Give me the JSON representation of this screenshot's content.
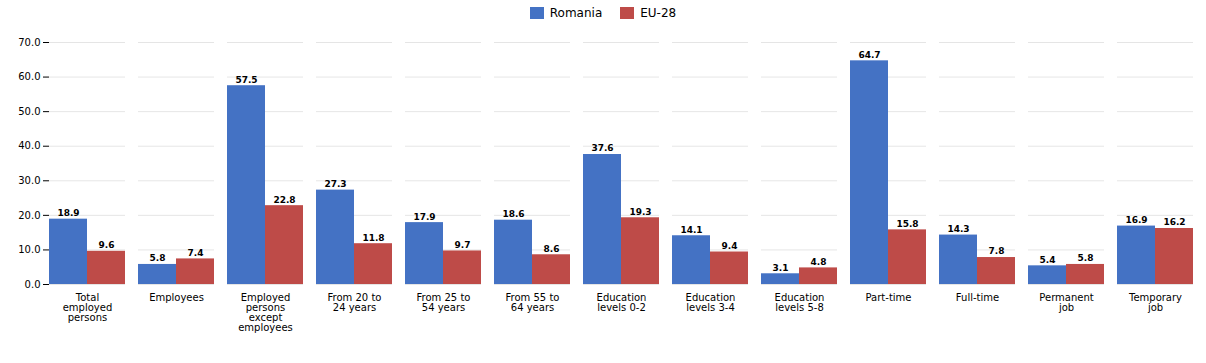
{
  "chart_data": {
    "type": "bar",
    "categories": [
      "Total\nemployed\npersons",
      "Employees",
      "Employed\npersons\nexcept\nemployees",
      "From 20 to\n24 years",
      "From 25 to\n54 years",
      "From 55 to\n64 years",
      "Education\nlevels 0-2",
      "Education\nlevels 3-4",
      "Education\nlevels 5-8",
      "Part-time",
      "Full-time",
      "Permanent\njob",
      "Temporary\njob"
    ],
    "series": [
      {
        "name": "Romania",
        "color": "#4472c4",
        "values": [
          18.9,
          5.8,
          57.5,
          27.3,
          17.9,
          18.6,
          37.6,
          14.1,
          3.1,
          64.7,
          14.3,
          5.4,
          16.9
        ]
      },
      {
        "name": "EU-28",
        "color": "#be4b48",
        "values": [
          9.6,
          7.4,
          22.8,
          11.8,
          9.7,
          8.6,
          19.3,
          9.4,
          4.8,
          15.8,
          7.8,
          5.8,
          16.2
        ]
      }
    ],
    "ylim": [
      0,
      70
    ],
    "yticks": [
      {
        "value": 0,
        "label": "0.0"
      },
      {
        "value": 10,
        "label": "10.0"
      },
      {
        "value": 20,
        "label": "20.0"
      },
      {
        "value": 30,
        "label": "30.0"
      },
      {
        "value": 40,
        "label": "40.0"
      },
      {
        "value": 50,
        "label": "50.0"
      },
      {
        "value": 60,
        "label": "60.0"
      },
      {
        "value": 70,
        "label": "70.0"
      }
    ],
    "grid": true,
    "legend": "top",
    "data_labels": true
  }
}
